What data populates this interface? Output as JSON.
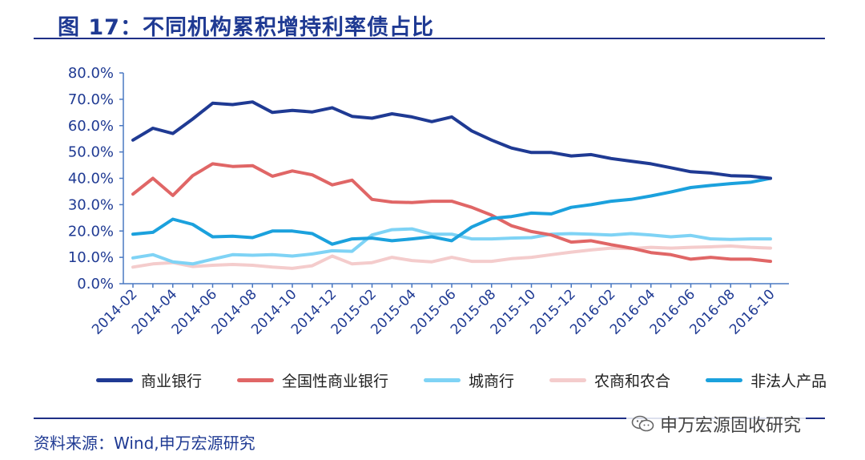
{
  "header": {
    "title": "图 17：不同机构累积增持利率债占比"
  },
  "footer": {
    "source": "资料来源：Wind,申万宏源研究",
    "watermark": "申万宏源固收研究"
  },
  "chart_data": {
    "type": "line",
    "title": "",
    "xlabel": "",
    "ylabel": "",
    "ylim": [
      0,
      80
    ],
    "yticks": [
      "0.0%",
      "10.0%",
      "20.0%",
      "30.0%",
      "40.0%",
      "50.0%",
      "60.0%",
      "70.0%",
      "80.0%"
    ],
    "x": [
      "2014-02",
      "2014-03",
      "2014-04",
      "2014-05",
      "2014-06",
      "2014-07",
      "2014-08",
      "2014-09",
      "2014-10",
      "2014-11",
      "2014-12",
      "2015-01",
      "2015-02",
      "2015-03",
      "2015-04",
      "2015-05",
      "2015-06",
      "2015-07",
      "2015-08",
      "2015-09",
      "2015-10",
      "2015-11",
      "2015-12",
      "2016-01",
      "2016-02",
      "2016-03",
      "2016-04",
      "2016-05",
      "2016-06",
      "2016-07",
      "2016-08",
      "2016-09",
      "2016-10"
    ],
    "xtick_labels": [
      "2014-02",
      "2014-04",
      "2014-06",
      "2014-08",
      "2014-10",
      "2014-12",
      "2015-02",
      "2015-04",
      "2015-06",
      "2015-08",
      "2015-10",
      "2015-12",
      "2016-02",
      "2016-04",
      "2016-06",
      "2016-08",
      "2016-10"
    ],
    "grid": false,
    "legend_position": "bottom",
    "series": [
      {
        "name": "商业银行",
        "color": "#1f3a93",
        "values": [
          54.5,
          59,
          57,
          62.5,
          68.5,
          68,
          69,
          65,
          65.8,
          65.2,
          66.8,
          63.5,
          62.8,
          64.5,
          63.3,
          61.5,
          63.3,
          58,
          54.5,
          51.5,
          49.8,
          49.8,
          48.5,
          49,
          47.5,
          46.5,
          45.5,
          44,
          42.5,
          42,
          41,
          40.8,
          40
        ]
      },
      {
        "name": "全国性商业银行",
        "color": "#e06666",
        "values": [
          34,
          40,
          33.5,
          41,
          45.5,
          44.5,
          44.8,
          40.8,
          42.8,
          41.3,
          37.5,
          39.3,
          32,
          31,
          30.8,
          31.3,
          31.3,
          29,
          26,
          22,
          19.8,
          18.5,
          15.8,
          16.3,
          14.8,
          13.5,
          11.8,
          11,
          9.3,
          10,
          9.3,
          9.3,
          8.5
        ]
      },
      {
        "name": "城商行",
        "color": "#7fd3f5",
        "values": [
          9.8,
          11,
          8.3,
          7.5,
          9.3,
          11,
          10.8,
          11,
          10.5,
          11.3,
          12.5,
          12.3,
          18.5,
          20.5,
          20.8,
          18.8,
          18.8,
          17,
          17,
          17.3,
          17.5,
          18.8,
          19,
          18.8,
          18.5,
          19,
          18.5,
          17.8,
          18.3,
          17,
          16.8,
          17,
          17
        ]
      },
      {
        "name": "农商和农合",
        "color": "#f4cccc",
        "values": [
          6.3,
          7.5,
          8,
          6.5,
          7,
          7.3,
          7,
          6.3,
          5.8,
          6.8,
          10.5,
          7.5,
          8,
          10,
          8.8,
          8.3,
          10,
          8.5,
          8.5,
          9.5,
          10,
          11,
          12,
          12.8,
          13.5,
          13.3,
          13.8,
          13.5,
          13.8,
          14,
          14.3,
          13.8,
          13.5
        ]
      },
      {
        "name": "非法人产品",
        "color": "#1ba1dd",
        "values": [
          18.8,
          19.5,
          24.5,
          22.5,
          17.8,
          18,
          17.5,
          20,
          20,
          19,
          15,
          17,
          17.3,
          16.3,
          17,
          17.8,
          16.3,
          21.5,
          24.8,
          25.5,
          26.8,
          26.5,
          29,
          30,
          31.3,
          32,
          33.3,
          34.8,
          36.5,
          37.3,
          38,
          38.5,
          40
        ]
      }
    ]
  }
}
